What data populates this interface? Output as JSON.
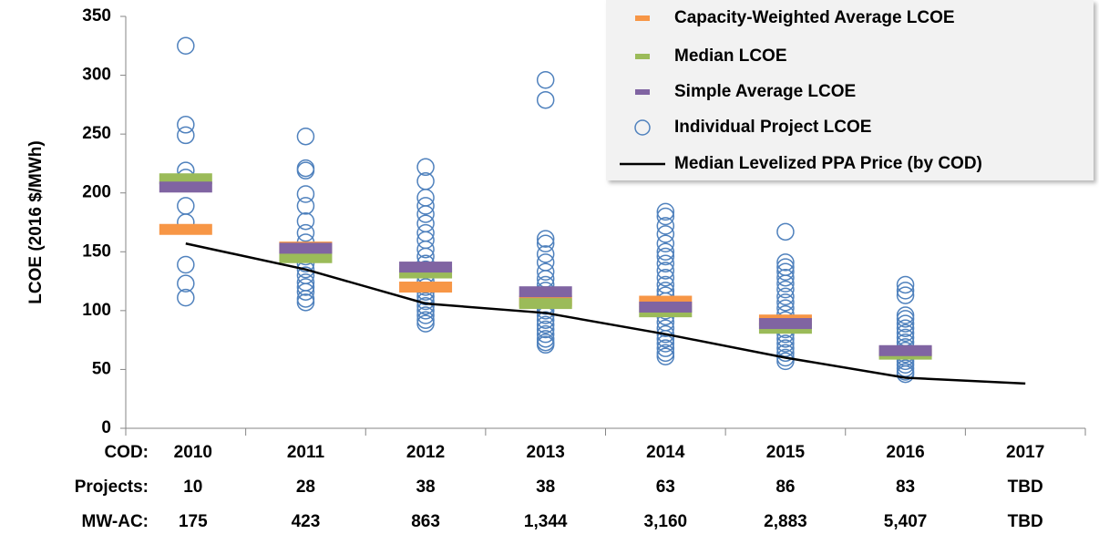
{
  "chart_data": {
    "type": "lcoe-strip",
    "y_label": "LCOE (2016 $/MWh)",
    "categories": [
      "2010",
      "2011",
      "2012",
      "2013",
      "2014",
      "2015",
      "2016",
      "2017"
    ],
    "x_row_label": "COD:",
    "table_rows": [
      {
        "label": "Projects:",
        "values": [
          "10",
          "28",
          "38",
          "38",
          "63",
          "86",
          "83",
          "TBD"
        ]
      },
      {
        "label": "MW-AC:",
        "values": [
          "175",
          "423",
          "863",
          "1,344",
          "3,160",
          "2,883",
          "5,407",
          "TBD"
        ]
      }
    ],
    "ylim": [
      0,
      350
    ],
    "yticks": [
      0,
      50,
      100,
      150,
      200,
      250,
      300,
      350
    ],
    "series": [
      {
        "name": "Capacity-Weighted Average LCOE",
        "kind": "dash",
        "color": "#f79646",
        "values": [
          169,
          154,
          120,
          108,
          108,
          92,
          65,
          null
        ]
      },
      {
        "name": "Median LCOE",
        "kind": "dash",
        "color": "#9bbb59",
        "values": [
          212,
          145,
          132,
          106,
          99,
          85,
          63,
          null
        ]
      },
      {
        "name": "Simple Average LCOE",
        "kind": "dash",
        "color": "#8064a2",
        "values": [
          205,
          153,
          137,
          116,
          103,
          89,
          66,
          null
        ]
      },
      {
        "name": "Individual Project LCOE",
        "kind": "points",
        "color": "#4f81bd",
        "values": [
          [
            325,
            258,
            249,
            219,
            213,
            189,
            139,
            123,
            111,
            175
          ],
          [
            248,
            221,
            219,
            199,
            189,
            176,
            166,
            158,
            150,
            146,
            140,
            135,
            130,
            124,
            120,
            116,
            110,
            107
          ],
          [
            222,
            210,
            196,
            189,
            182,
            174,
            166,
            160,
            152,
            146,
            140,
            135,
            130,
            125,
            120,
            116,
            112,
            108,
            104,
            100,
            96,
            92,
            89
          ],
          [
            296,
            279,
            161,
            157,
            148,
            141,
            133,
            127,
            122,
            117,
            113,
            109,
            104,
            100,
            96,
            92,
            88,
            84,
            80,
            76,
            73,
            71
          ],
          [
            184,
            180,
            172,
            165,
            157,
            150,
            146,
            140,
            134,
            128,
            122,
            117,
            113,
            108,
            104,
            100,
            95,
            90,
            85,
            80,
            76,
            72,
            68,
            64,
            61
          ],
          [
            167,
            141,
            137,
            133,
            128,
            123,
            118,
            112,
            107,
            102,
            97,
            92,
            88,
            84,
            80,
            76,
            72,
            68,
            64,
            60,
            57
          ],
          [
            122,
            117,
            113,
            96,
            93,
            89,
            85,
            81,
            77,
            73,
            69,
            66,
            63,
            60,
            57,
            54,
            51,
            48,
            46
          ],
          []
        ]
      },
      {
        "name": "Median Levelized PPA Price (by COD)",
        "kind": "line",
        "color": "#000000",
        "values": [
          157,
          135,
          106,
          98,
          80,
          60,
          43,
          38
        ]
      }
    ]
  }
}
